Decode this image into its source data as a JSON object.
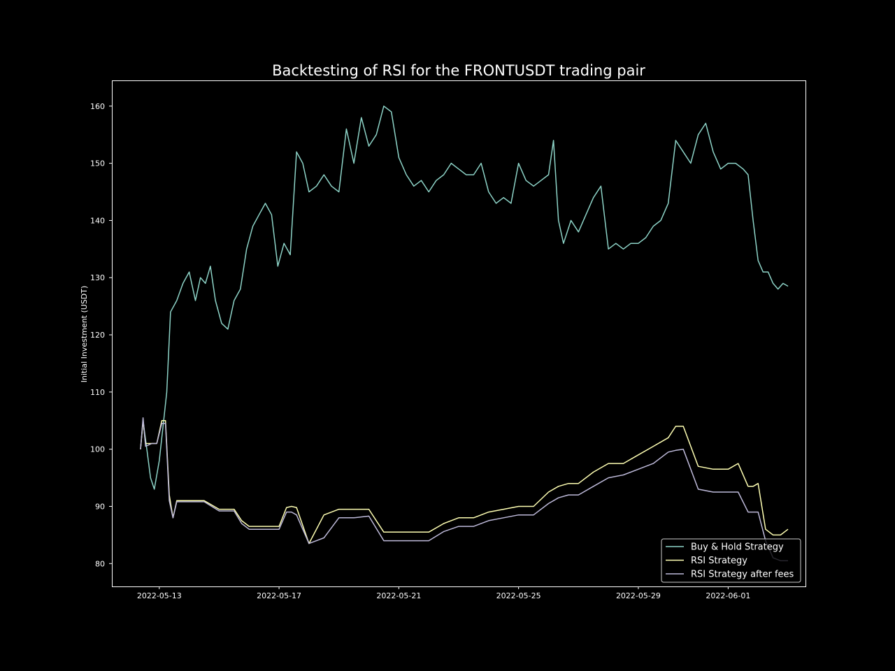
{
  "chart_data": {
    "type": "line",
    "title": "Backtesting of RSI for the FRONTUSDT trading pair",
    "xlabel": "",
    "ylabel": "Initial Investment (USDT)",
    "xlim": [
      "2022-05-11T10:00",
      "2022-06-03T14:00"
    ],
    "ylim": [
      76.0,
      164.5
    ],
    "x_ticks": [
      "2022-05-13",
      "2022-05-17",
      "2022-05-21",
      "2022-05-25",
      "2022-05-29",
      "2022-06-01"
    ],
    "y_ticks": [
      80,
      90,
      100,
      110,
      120,
      130,
      140,
      150,
      160
    ],
    "grid": false,
    "legend_position": "bottom-right",
    "colors": {
      "background": "#000000",
      "text": "#ffffff"
    },
    "series": [
      {
        "name": "Buy & Hold Strategy",
        "color": "#8dd3c7",
        "x": [
          "2022-05-12T09:00",
          "2022-05-12T11:00",
          "2022-05-12T14:00",
          "2022-05-12T17:00",
          "2022-05-12T20:00",
          "2022-05-13T00:00",
          "2022-05-13T03:00",
          "2022-05-13T06:00",
          "2022-05-13T09:00",
          "2022-05-13T14:00",
          "2022-05-13T19:00",
          "2022-05-14T00:00",
          "2022-05-14T05:00",
          "2022-05-14T09:00",
          "2022-05-14T13:00",
          "2022-05-14T17:00",
          "2022-05-14T21:00",
          "2022-05-15T02:00",
          "2022-05-15T07:00",
          "2022-05-15T12:00",
          "2022-05-15T17:00",
          "2022-05-15T22:00",
          "2022-05-16T03:00",
          "2022-05-16T08:00",
          "2022-05-16T13:00",
          "2022-05-16T18:00",
          "2022-05-16T23:00",
          "2022-05-17T04:00",
          "2022-05-17T09:00",
          "2022-05-17T14:00",
          "2022-05-17T19:00",
          "2022-05-18T00:00",
          "2022-05-18T06:00",
          "2022-05-18T12:00",
          "2022-05-18T18:00",
          "2022-05-19T00:00",
          "2022-05-19T06:00",
          "2022-05-19T12:00",
          "2022-05-19T18:00",
          "2022-05-20T00:00",
          "2022-05-20T06:00",
          "2022-05-20T12:00",
          "2022-05-20T18:00",
          "2022-05-21T00:00",
          "2022-05-21T06:00",
          "2022-05-21T12:00",
          "2022-05-21T18:00",
          "2022-05-22T00:00",
          "2022-05-22T06:00",
          "2022-05-22T12:00",
          "2022-05-22T18:00",
          "2022-05-23T00:00",
          "2022-05-23T06:00",
          "2022-05-23T12:00",
          "2022-05-23T18:00",
          "2022-05-24T00:00",
          "2022-05-24T06:00",
          "2022-05-24T12:00",
          "2022-05-24T18:00",
          "2022-05-25T00:00",
          "2022-05-25T06:00",
          "2022-05-25T12:00",
          "2022-05-25T18:00",
          "2022-05-26T00:00",
          "2022-05-26T04:00",
          "2022-05-26T08:00",
          "2022-05-26T12:00",
          "2022-05-26T18:00",
          "2022-05-27T00:00",
          "2022-05-27T06:00",
          "2022-05-27T12:00",
          "2022-05-27T18:00",
          "2022-05-28T00:00",
          "2022-05-28T06:00",
          "2022-05-28T12:00",
          "2022-05-28T18:00",
          "2022-05-29T00:00",
          "2022-05-29T06:00",
          "2022-05-29T12:00",
          "2022-05-29T18:00",
          "2022-05-30T00:00",
          "2022-05-30T06:00",
          "2022-05-30T12:00",
          "2022-05-30T18:00",
          "2022-05-31T00:00",
          "2022-05-31T06:00",
          "2022-05-31T12:00",
          "2022-05-31T18:00",
          "2022-06-01T00:00",
          "2022-06-01T06:00",
          "2022-06-01T12:00",
          "2022-06-01T16:00",
          "2022-06-01T20:00",
          "2022-06-02T00:00",
          "2022-06-02T04:00",
          "2022-06-02T08:00",
          "2022-06-02T12:00",
          "2022-06-02T16:00",
          "2022-06-02T20:00",
          "2022-06-03T00:00"
        ],
        "y": [
          100.0,
          105.0,
          100.0,
          95.0,
          93.0,
          98.0,
          104.0,
          110.0,
          124.0,
          126.0,
          129.0,
          131.0,
          126.0,
          130.0,
          129.0,
          132.0,
          126.0,
          122.0,
          121.0,
          126.0,
          128.0,
          135.0,
          139.0,
          141.0,
          143.0,
          141.0,
          132.0,
          136.0,
          134.0,
          152.0,
          150.0,
          145.0,
          146.0,
          148.0,
          146.0,
          145.0,
          156.0,
          150.0,
          158.0,
          153.0,
          155.0,
          160.0,
          159.0,
          151.0,
          148.0,
          146.0,
          147.0,
          145.0,
          147.0,
          148.0,
          150.0,
          149.0,
          148.0,
          148.0,
          150.0,
          145.0,
          143.0,
          144.0,
          143.0,
          150.0,
          147.0,
          146.0,
          147.0,
          148.0,
          154.0,
          140.0,
          136.0,
          140.0,
          138.0,
          141.0,
          144.0,
          146.0,
          135.0,
          136.0,
          135.0,
          136.0,
          136.0,
          137.0,
          139.0,
          140.0,
          143.0,
          154.0,
          152.0,
          150.0,
          155.0,
          157.0,
          152.0,
          149.0,
          150.0,
          150.0,
          149.0,
          148.0,
          140.0,
          133.0,
          131.0,
          131.0,
          129.0,
          128.0,
          129.0,
          128.5
        ]
      },
      {
        "name": "RSI Strategy",
        "color": "#ffffb3",
        "x": [
          "2022-05-12T09:00",
          "2022-05-12T11:00",
          "2022-05-12T13:00",
          "2022-05-12T18:00",
          "2022-05-12T22:00",
          "2022-05-13T02:00",
          "2022-05-13T05:00",
          "2022-05-13T08:00",
          "2022-05-13T11:00",
          "2022-05-13T14:00",
          "2022-05-13T16:00",
          "2022-05-14T00:00",
          "2022-05-14T12:00",
          "2022-05-15T00:00",
          "2022-05-15T12:00",
          "2022-05-15T18:00",
          "2022-05-16T00:00",
          "2022-05-16T12:00",
          "2022-05-17T00:00",
          "2022-05-17T06:00",
          "2022-05-17T10:00",
          "2022-05-17T14:00",
          "2022-05-18T00:00",
          "2022-05-18T12:00",
          "2022-05-19T00:00",
          "2022-05-19T12:00",
          "2022-05-20T00:00",
          "2022-05-20T12:00",
          "2022-05-21T00:00",
          "2022-05-21T12:00",
          "2022-05-22T00:00",
          "2022-05-22T12:00",
          "2022-05-23T00:00",
          "2022-05-23T12:00",
          "2022-05-24T00:00",
          "2022-05-24T12:00",
          "2022-05-25T00:00",
          "2022-05-25T12:00",
          "2022-05-26T00:00",
          "2022-05-26T08:00",
          "2022-05-26T16:00",
          "2022-05-27T00:00",
          "2022-05-27T12:00",
          "2022-05-28T00:00",
          "2022-05-28T12:00",
          "2022-05-29T00:00",
          "2022-05-29T12:00",
          "2022-05-30T00:00",
          "2022-05-30T06:00",
          "2022-05-30T12:00",
          "2022-05-31T00:00",
          "2022-05-31T12:00",
          "2022-06-01T00:00",
          "2022-06-01T08:00",
          "2022-06-01T16:00",
          "2022-06-01T20:00",
          "2022-06-02T00:00",
          "2022-06-02T06:00",
          "2022-06-02T12:00",
          "2022-06-02T18:00",
          "2022-06-03T00:00"
        ],
        "y": [
          100.0,
          105.0,
          101.0,
          101.0,
          101.0,
          105.0,
          105.0,
          92.0,
          88.0,
          91.0,
          91.0,
          91.0,
          91.0,
          89.5,
          89.5,
          87.5,
          86.5,
          86.5,
          86.5,
          89.8,
          90.0,
          89.8,
          83.5,
          88.5,
          89.5,
          89.5,
          89.5,
          85.5,
          85.5,
          85.5,
          85.5,
          87.0,
          88.0,
          88.0,
          89.0,
          89.5,
          90.0,
          90.0,
          92.5,
          93.5,
          94.0,
          94.0,
          96.0,
          97.5,
          97.5,
          99.0,
          100.5,
          102.0,
          104.0,
          104.0,
          97.0,
          96.5,
          96.5,
          97.5,
          93.5,
          93.5,
          94.0,
          86.0,
          85.0,
          85.0,
          86.0
        ]
      },
      {
        "name": "RSI Strategy after fees",
        "color": "#bebada",
        "x": [
          "2022-05-12T09:00",
          "2022-05-12T11:00",
          "2022-05-12T13:00",
          "2022-05-12T18:00",
          "2022-05-12T22:00",
          "2022-05-13T02:00",
          "2022-05-13T05:00",
          "2022-05-13T08:00",
          "2022-05-13T11:00",
          "2022-05-13T14:00",
          "2022-05-13T16:00",
          "2022-05-14T00:00",
          "2022-05-14T12:00",
          "2022-05-15T00:00",
          "2022-05-15T12:00",
          "2022-05-15T18:00",
          "2022-05-16T00:00",
          "2022-05-16T12:00",
          "2022-05-17T00:00",
          "2022-05-17T06:00",
          "2022-05-17T10:00",
          "2022-05-17T14:00",
          "2022-05-18T00:00",
          "2022-05-18T12:00",
          "2022-05-19T00:00",
          "2022-05-19T12:00",
          "2022-05-20T00:00",
          "2022-05-20T12:00",
          "2022-05-21T00:00",
          "2022-05-21T12:00",
          "2022-05-22T00:00",
          "2022-05-22T12:00",
          "2022-05-23T00:00",
          "2022-05-23T12:00",
          "2022-05-24T00:00",
          "2022-05-24T12:00",
          "2022-05-25T00:00",
          "2022-05-25T12:00",
          "2022-05-26T00:00",
          "2022-05-26T08:00",
          "2022-05-26T16:00",
          "2022-05-27T00:00",
          "2022-05-27T12:00",
          "2022-05-28T00:00",
          "2022-05-28T12:00",
          "2022-05-29T00:00",
          "2022-05-29T12:00",
          "2022-05-30T00:00",
          "2022-05-30T06:00",
          "2022-05-30T12:00",
          "2022-05-31T00:00",
          "2022-05-31T12:00",
          "2022-06-01T00:00",
          "2022-06-01T08:00",
          "2022-06-01T16:00",
          "2022-06-01T20:00",
          "2022-06-02T00:00",
          "2022-06-02T06:00",
          "2022-06-02T12:00",
          "2022-06-02T18:00",
          "2022-06-03T00:00"
        ],
        "y": [
          100.0,
          105.5,
          100.5,
          101.0,
          101.0,
          104.5,
          104.5,
          91.0,
          88.0,
          90.8,
          90.8,
          90.8,
          90.8,
          89.2,
          89.2,
          87.0,
          86.0,
          86.0,
          86.0,
          89.0,
          89.0,
          88.5,
          83.5,
          84.5,
          88.0,
          88.0,
          88.3,
          84.0,
          84.0,
          84.0,
          84.0,
          85.6,
          86.5,
          86.5,
          87.5,
          88.0,
          88.5,
          88.5,
          90.5,
          91.5,
          92.0,
          92.0,
          93.5,
          95.0,
          95.5,
          96.5,
          97.5,
          99.5,
          99.8,
          100.0,
          93.0,
          92.5,
          92.5,
          92.5,
          89.0,
          89.0,
          89.0,
          84.0,
          81.0,
          80.5,
          80.5
        ]
      }
    ]
  }
}
